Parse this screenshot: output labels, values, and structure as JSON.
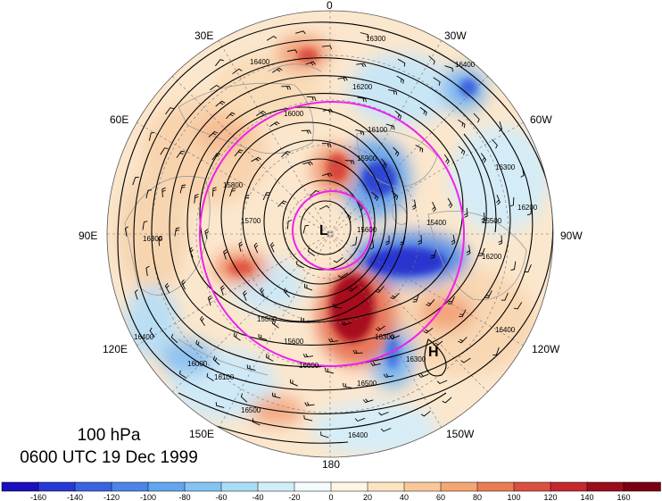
{
  "map": {
    "level": "100 hPa",
    "valid_time": "0600 UTC 19 Dec 1999",
    "longitude_labels": {
      "top": "0",
      "top_left": "30E",
      "top_right": "30W",
      "upper_left": "60E",
      "upper_right": "60W",
      "left": "90E",
      "right": "90W",
      "lower_left": "120E",
      "lower_right": "120W",
      "bottom_left": "150E",
      "bottom_right": "150W",
      "bottom": "180"
    },
    "centers": {
      "low": "L",
      "high": "H"
    },
    "contour_labels": [
      "16300",
      "16400",
      "16200",
      "16100",
      "16000",
      "15900",
      "15800",
      "15700",
      "15600",
      "15500",
      "16300",
      "16400",
      "16200",
      "16100",
      "16000",
      "16500",
      "16400",
      "16300",
      "16400",
      "16600",
      "16500",
      "16400",
      "16300",
      "15600",
      "15400",
      "15500",
      "16200",
      "16300"
    ],
    "palette": {
      "land_lines": "#9a9a9a",
      "contours": "#000000",
      "highlight_circles": "#ee22ee",
      "negative_strong": "#1020c8",
      "positive_strong": "#8a0010"
    }
  },
  "colorbar": {
    "ticks": [
      "-160",
      "-140",
      "-120",
      "-100",
      "-80",
      "-60",
      "-40",
      "-20",
      "0",
      "20",
      "40",
      "60",
      "80",
      "100",
      "120",
      "140",
      "160"
    ],
    "colors": [
      "#1a0fbf",
      "#2639d4",
      "#3a63e0",
      "#4c85e8",
      "#61a6ee",
      "#84c3f2",
      "#a9dcf6",
      "#d0eef9",
      "#f4fbfd",
      "#fdf6e4",
      "#fce4c0",
      "#f9c89a",
      "#f4a673",
      "#ea7c56",
      "#db4f3e",
      "#c2282e",
      "#9b0d1b",
      "#7a0011"
    ]
  }
}
